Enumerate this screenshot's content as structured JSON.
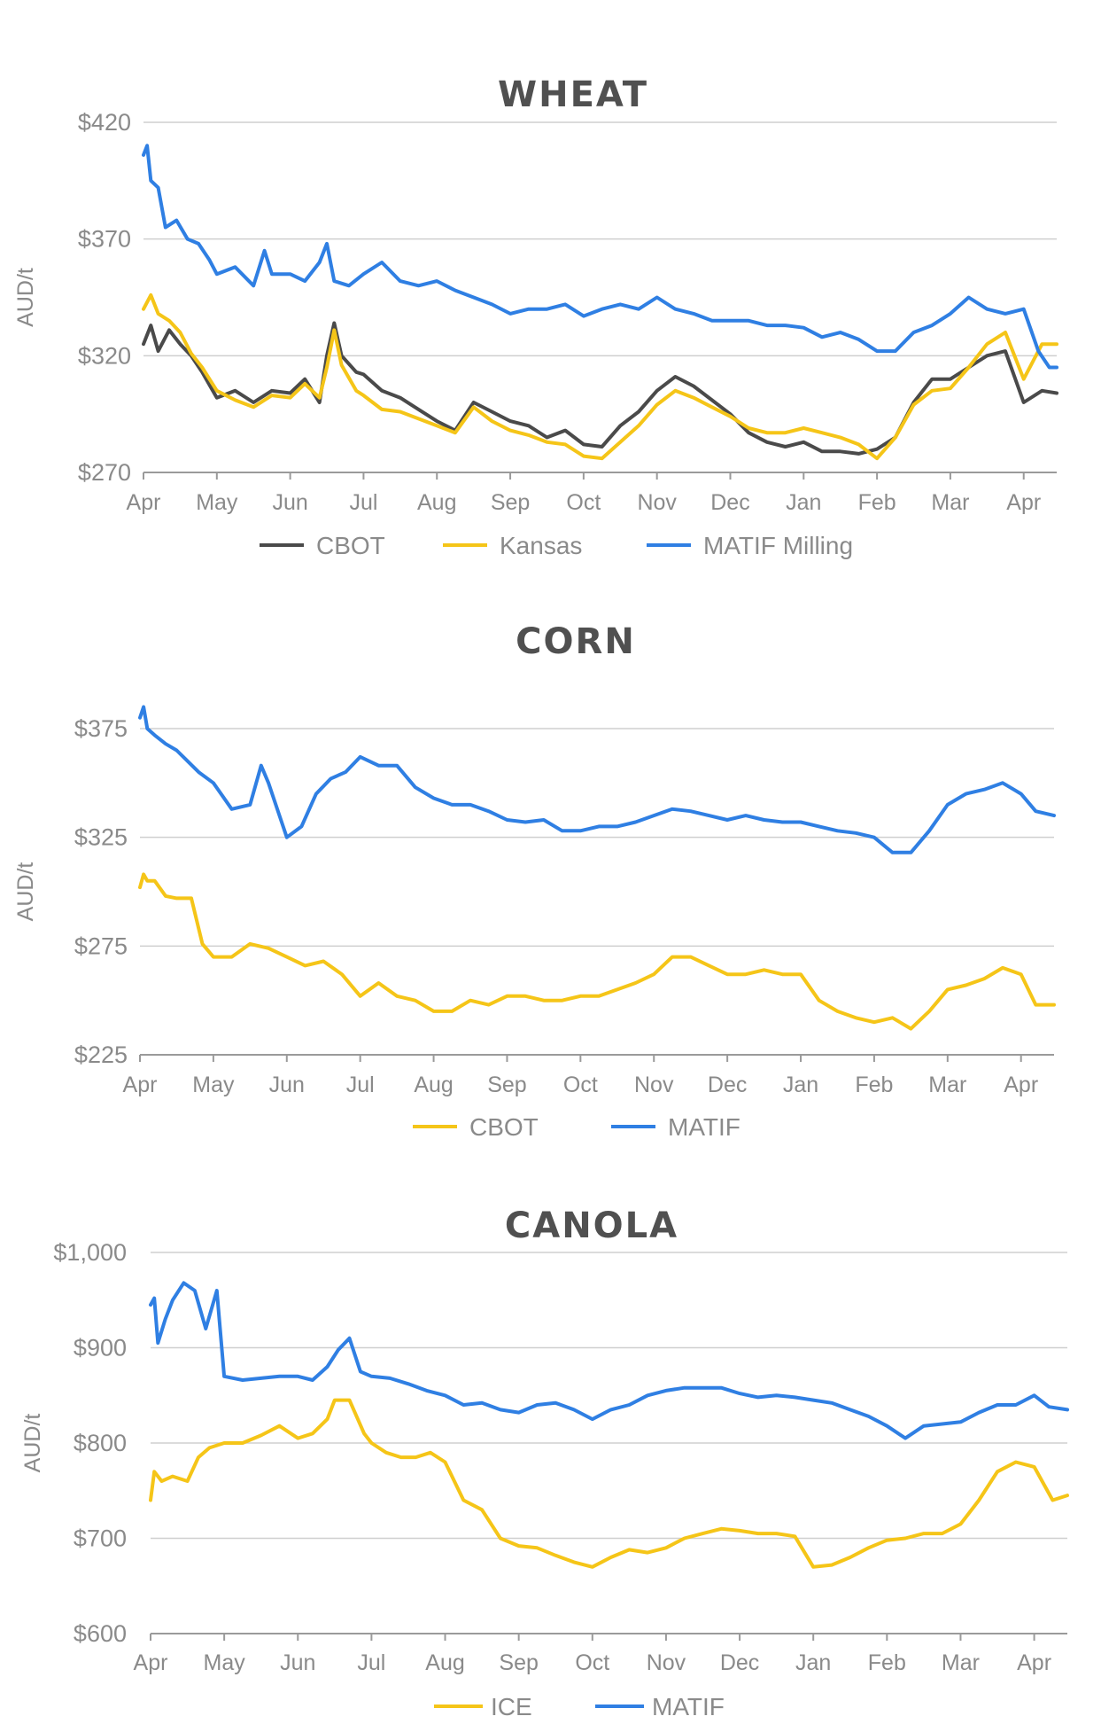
{
  "colors": {
    "CBOT_wheat": "#4a4a4a",
    "yellow": "#f5c518",
    "blue": "#2f7fe3"
  },
  "chart_data": [
    {
      "type": "line",
      "title": "WHEAT",
      "ylabel": "AUD/t",
      "ylim": [
        270,
        420
      ],
      "yticks": [
        270,
        320,
        370,
        420
      ],
      "ytick_labels": [
        "$270",
        "$320",
        "$370",
        "$420"
      ],
      "x_tick_labels": [
        "Apr",
        "May",
        "Jun",
        "Jul",
        "Aug",
        "Sep",
        "Oct",
        "Nov",
        "Dec",
        "Jan",
        "Feb",
        "Mar",
        "Apr"
      ],
      "x_tick_pos": [
        0,
        1,
        2,
        3,
        4,
        5,
        6,
        7,
        8,
        9,
        10,
        11,
        12
      ],
      "x_range": [
        0,
        12.45
      ],
      "grid": true,
      "legend": "bottom",
      "series": [
        {
          "name": "CBOT",
          "color": "#4a4a4a",
          "x": [
            0,
            0.1,
            0.2,
            0.35,
            0.5,
            0.65,
            0.8,
            1.0,
            1.25,
            1.5,
            1.75,
            2.0,
            2.2,
            2.4,
            2.5,
            2.6,
            2.7,
            2.9,
            3.0,
            3.25,
            3.5,
            3.75,
            4.0,
            4.25,
            4.5,
            4.75,
            5.0,
            5.25,
            5.5,
            5.75,
            6.0,
            6.25,
            6.5,
            6.75,
            7.0,
            7.25,
            7.5,
            7.75,
            8.0,
            8.25,
            8.5,
            8.75,
            9.0,
            9.25,
            9.5,
            9.75,
            10.0,
            10.25,
            10.5,
            10.75,
            11.0,
            11.25,
            11.5,
            11.75,
            12.0,
            12.25,
            12.45
          ],
          "y": [
            325,
            333,
            322,
            331,
            325,
            320,
            313,
            302,
            305,
            300,
            305,
            304,
            310,
            300,
            320,
            334,
            320,
            313,
            312,
            305,
            302,
            297,
            292,
            288,
            300,
            296,
            292,
            290,
            285,
            288,
            282,
            281,
            290,
            296,
            305,
            311,
            307,
            301,
            295,
            287,
            283,
            281,
            283,
            279,
            279,
            278,
            280,
            285,
            300,
            310,
            310,
            315,
            320,
            322,
            300,
            305,
            304
          ]
        },
        {
          "name": "Kansas",
          "color": "#f5c518",
          "x": [
            0,
            0.1,
            0.2,
            0.35,
            0.5,
            0.65,
            0.8,
            1.0,
            1.25,
            1.5,
            1.75,
            2.0,
            2.2,
            2.4,
            2.5,
            2.6,
            2.7,
            2.9,
            3.0,
            3.25,
            3.5,
            3.75,
            4.0,
            4.25,
            4.5,
            4.75,
            5.0,
            5.25,
            5.5,
            5.75,
            6.0,
            6.25,
            6.5,
            6.75,
            7.0,
            7.25,
            7.5,
            7.75,
            8.0,
            8.25,
            8.5,
            8.75,
            9.0,
            9.25,
            9.5,
            9.75,
            10.0,
            10.25,
            10.5,
            10.75,
            11.0,
            11.25,
            11.5,
            11.75,
            12.0,
            12.25,
            12.45
          ],
          "y": [
            340,
            346,
            338,
            335,
            330,
            321,
            315,
            305,
            301,
            298,
            303,
            302,
            308,
            302,
            315,
            331,
            316,
            305,
            303,
            297,
            296,
            293,
            290,
            287,
            298,
            292,
            288,
            286,
            283,
            282,
            277,
            276,
            283,
            290,
            299,
            305,
            302,
            298,
            294,
            289,
            287,
            287,
            289,
            287,
            285,
            282,
            276,
            285,
            299,
            305,
            306,
            315,
            325,
            330,
            310,
            325,
            325
          ]
        },
        {
          "name": "MATIF Milling",
          "color": "#2f7fe3",
          "x": [
            0,
            0.05,
            0.1,
            0.2,
            0.3,
            0.45,
            0.6,
            0.75,
            0.9,
            1.0,
            1.25,
            1.5,
            1.65,
            1.75,
            2.0,
            2.2,
            2.4,
            2.5,
            2.6,
            2.8,
            3.0,
            3.25,
            3.5,
            3.75,
            4.0,
            4.25,
            4.5,
            4.75,
            5.0,
            5.25,
            5.5,
            5.75,
            6.0,
            6.25,
            6.5,
            6.75,
            7.0,
            7.25,
            7.5,
            7.75,
            8.0,
            8.25,
            8.5,
            8.75,
            9.0,
            9.25,
            9.5,
            9.75,
            10.0,
            10.25,
            10.5,
            10.75,
            11.0,
            11.25,
            11.5,
            11.75,
            12.0,
            12.2,
            12.35,
            12.45
          ],
          "y": [
            406,
            410,
            395,
            392,
            375,
            378,
            370,
            368,
            361,
            355,
            358,
            350,
            365,
            355,
            355,
            352,
            360,
            368,
            352,
            350,
            355,
            360,
            352,
            350,
            352,
            348,
            345,
            342,
            338,
            340,
            340,
            342,
            337,
            340,
            342,
            340,
            345,
            340,
            338,
            335,
            335,
            335,
            333,
            333,
            332,
            328,
            330,
            327,
            322,
            322,
            330,
            333,
            338,
            345,
            340,
            338,
            340,
            322,
            315,
            315
          ]
        }
      ]
    },
    {
      "type": "line",
      "title": "CORN",
      "ylabel": "AUD/t",
      "ylim": [
        225,
        375
      ],
      "yticks": [
        225,
        275,
        325,
        375
      ],
      "ytick_labels": [
        "$225",
        "$275",
        "$325",
        "$375"
      ],
      "x_tick_labels": [
        "Apr",
        "May",
        "Jun",
        "Jul",
        "Aug",
        "Sep",
        "Oct",
        "Nov",
        "Dec",
        "Jan",
        "Feb",
        "Mar",
        "Apr"
      ],
      "x_tick_pos": [
        0,
        1,
        2,
        3,
        4,
        5,
        6,
        7,
        8,
        9,
        10,
        11,
        12
      ],
      "x_range": [
        0,
        12.45
      ],
      "grid": true,
      "legend": "bottom",
      "series": [
        {
          "name": "CBOT",
          "color": "#f5c518",
          "x": [
            0,
            0.05,
            0.1,
            0.2,
            0.35,
            0.5,
            0.7,
            0.85,
            1.0,
            1.25,
            1.5,
            1.75,
            2.0,
            2.25,
            2.5,
            2.75,
            3.0,
            3.25,
            3.5,
            3.75,
            4.0,
            4.25,
            4.5,
            4.75,
            5.0,
            5.25,
            5.5,
            5.75,
            6.0,
            6.25,
            6.5,
            6.75,
            7.0,
            7.25,
            7.5,
            7.75,
            8.0,
            8.25,
            8.5,
            8.75,
            9.0,
            9.25,
            9.5,
            9.75,
            10.0,
            10.25,
            10.5,
            10.75,
            11.0,
            11.25,
            11.5,
            11.75,
            12.0,
            12.2,
            12.45
          ],
          "y": [
            302,
            308,
            305,
            305,
            298,
            297,
            297,
            276,
            270,
            270,
            276,
            274,
            270,
            266,
            268,
            262,
            252,
            258,
            252,
            250,
            245,
            245,
            250,
            248,
            252,
            252,
            250,
            250,
            252,
            252,
            255,
            258,
            262,
            270,
            270,
            266,
            262,
            262,
            264,
            262,
            262,
            250,
            245,
            242,
            240,
            242,
            237,
            245,
            255,
            257,
            260,
            265,
            262,
            248,
            248
          ]
        },
        {
          "name": "MATIF",
          "color": "#2f7fe3",
          "x": [
            0,
            0.05,
            0.1,
            0.2,
            0.35,
            0.5,
            0.65,
            0.8,
            1.0,
            1.25,
            1.5,
            1.65,
            1.75,
            1.9,
            2.0,
            2.2,
            2.4,
            2.6,
            2.8,
            3.0,
            3.25,
            3.5,
            3.75,
            4.0,
            4.25,
            4.5,
            4.75,
            5.0,
            5.25,
            5.5,
            5.75,
            6.0,
            6.25,
            6.5,
            6.75,
            7.0,
            7.25,
            7.5,
            7.75,
            8.0,
            8.25,
            8.5,
            8.75,
            9.0,
            9.25,
            9.5,
            9.75,
            10.0,
            10.25,
            10.5,
            10.75,
            11.0,
            11.25,
            11.5,
            11.75,
            12.0,
            12.2,
            12.45
          ],
          "y": [
            380,
            385,
            375,
            372,
            368,
            365,
            360,
            355,
            350,
            338,
            340,
            358,
            350,
            335,
            325,
            330,
            345,
            352,
            355,
            362,
            358,
            358,
            348,
            343,
            340,
            340,
            337,
            333,
            332,
            333,
            328,
            328,
            330,
            330,
            332,
            335,
            338,
            337,
            335,
            333,
            335,
            333,
            332,
            332,
            330,
            328,
            327,
            325,
            318,
            318,
            328,
            340,
            345,
            347,
            350,
            345,
            337,
            335
          ]
        }
      ]
    },
    {
      "type": "line",
      "title": "CANOLA",
      "ylabel": "AUD/t",
      "ylim": [
        600,
        1000
      ],
      "yticks": [
        600,
        700,
        800,
        900,
        1000
      ],
      "ytick_labels": [
        "$600",
        "$700",
        "$800",
        "$900",
        "$1,000"
      ],
      "x_tick_labels": [
        "Apr",
        "May",
        "Jun",
        "Jul",
        "Aug",
        "Sep",
        "Oct",
        "Nov",
        "Dec",
        "Jan",
        "Feb",
        "Mar",
        "Apr"
      ],
      "x_tick_pos": [
        0,
        1,
        2,
        3,
        4,
        5,
        6,
        7,
        8,
        9,
        10,
        11,
        12
      ],
      "x_range": [
        0,
        12.45
      ],
      "grid": true,
      "legend": "bottom",
      "series": [
        {
          "name": "ICE",
          "color": "#f5c518",
          "x": [
            0,
            0.05,
            0.15,
            0.3,
            0.5,
            0.65,
            0.8,
            1.0,
            1.25,
            1.5,
            1.75,
            2.0,
            2.2,
            2.4,
            2.5,
            2.7,
            2.9,
            3.0,
            3.2,
            3.4,
            3.6,
            3.8,
            4.0,
            4.25,
            4.5,
            4.75,
            5.0,
            5.25,
            5.5,
            5.75,
            6.0,
            6.25,
            6.5,
            6.75,
            7.0,
            7.25,
            7.5,
            7.75,
            8.0,
            8.25,
            8.5,
            8.75,
            9.0,
            9.25,
            9.5,
            9.75,
            10.0,
            10.25,
            10.5,
            10.75,
            11.0,
            11.25,
            11.5,
            11.75,
            12.0,
            12.25,
            12.45
          ],
          "y": [
            740,
            770,
            760,
            765,
            760,
            785,
            795,
            800,
            800,
            808,
            818,
            805,
            810,
            825,
            845,
            845,
            810,
            800,
            790,
            785,
            785,
            790,
            780,
            740,
            730,
            700,
            692,
            690,
            682,
            675,
            670,
            680,
            688,
            685,
            690,
            700,
            705,
            710,
            708,
            705,
            705,
            702,
            670,
            672,
            680,
            690,
            698,
            700,
            705,
            705,
            715,
            740,
            770,
            780,
            775,
            740,
            745
          ]
        },
        {
          "name": "MATIF",
          "color": "#2f7fe3",
          "x": [
            0,
            0.05,
            0.1,
            0.2,
            0.3,
            0.45,
            0.6,
            0.75,
            0.9,
            1.0,
            1.25,
            1.5,
            1.75,
            2.0,
            2.2,
            2.4,
            2.55,
            2.7,
            2.85,
            3.0,
            3.25,
            3.5,
            3.75,
            4.0,
            4.25,
            4.5,
            4.75,
            5.0,
            5.25,
            5.5,
            5.75,
            6.0,
            6.25,
            6.5,
            6.75,
            7.0,
            7.25,
            7.5,
            7.75,
            8.0,
            8.25,
            8.5,
            8.75,
            9.0,
            9.25,
            9.5,
            9.75,
            10.0,
            10.25,
            10.5,
            10.75,
            11.0,
            11.25,
            11.5,
            11.75,
            12.0,
            12.2,
            12.45
          ],
          "y": [
            945,
            952,
            905,
            930,
            950,
            968,
            960,
            920,
            960,
            870,
            866,
            868,
            870,
            870,
            866,
            880,
            898,
            910,
            875,
            870,
            868,
            862,
            855,
            850,
            840,
            842,
            835,
            832,
            840,
            842,
            835,
            825,
            835,
            840,
            850,
            855,
            858,
            858,
            858,
            852,
            848,
            850,
            848,
            845,
            842,
            835,
            828,
            818,
            805,
            818,
            820,
            822,
            832,
            840,
            840,
            850,
            838,
            835
          ]
        }
      ]
    }
  ]
}
